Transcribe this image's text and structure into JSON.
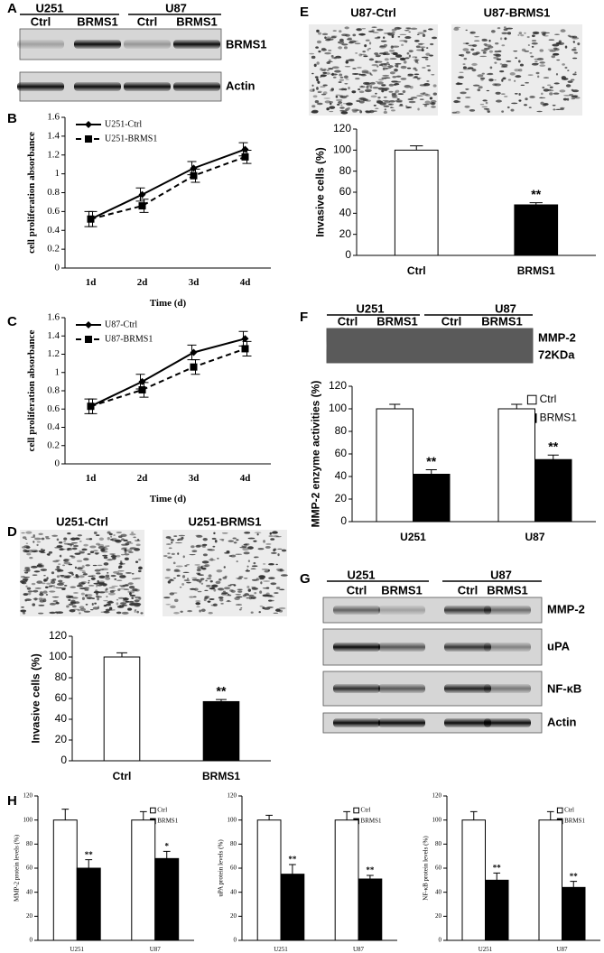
{
  "figure": {
    "panel_labels": [
      "A",
      "B",
      "C",
      "D",
      "E",
      "F",
      "G",
      "H"
    ],
    "blot_A": {
      "groups": [
        "U251",
        "U87"
      ],
      "lanes": [
        "Ctrl",
        "BRMS1",
        "Ctrl",
        "BRMS1"
      ],
      "rows": [
        "BRMS1",
        "Actin"
      ]
    },
    "micrograph_D": [
      "U251-Ctrl",
      "U251-BRMS1"
    ],
    "micrograph_E": [
      "U87-Ctrl",
      "U87-BRMS1"
    ],
    "zymogram_F": {
      "groups": [
        "U251",
        "U87"
      ],
      "lanes": [
        "Ctrl",
        "BRMS1",
        "Ctrl",
        "BRMS1"
      ],
      "rows": [
        "MMP-2",
        "72KDa"
      ]
    },
    "blot_G": {
      "groups": [
        "U251",
        "U87"
      ],
      "lanes": [
        "Ctrl",
        "BRMS1",
        "Ctrl",
        "BRMS1"
      ],
      "rows": [
        "MMP-2",
        "uPA",
        "NF-κB",
        "Actin"
      ]
    }
  },
  "chart_data": [
    {
      "type": "line",
      "x_label": "Time (d)",
      "y_label": "cell proliferation absorbance",
      "categories": [
        "1d",
        "2d",
        "3d",
        "4d"
      ],
      "ylim": [
        0,
        1.6
      ],
      "yticks": [
        0,
        0.2,
        0.4,
        0.6,
        0.8,
        1,
        1.2,
        1.4,
        1.6
      ],
      "legend": "upper left",
      "series": [
        {
          "name": "U251-Ctrl",
          "color": "#000000",
          "line_style": "solid",
          "marker": "diamond",
          "values": [
            0.52,
            0.78,
            1.06,
            1.26
          ],
          "errors": [
            0.08,
            0.07,
            0.07,
            0.07
          ]
        },
        {
          "name": "U251-BRMS1",
          "color": "#000000",
          "line_style": "dashed",
          "marker": "square",
          "values": [
            0.52,
            0.66,
            0.98,
            1.18
          ],
          "errors": [
            0.08,
            0.07,
            0.07,
            0.07
          ]
        }
      ]
    },
    {
      "type": "line",
      "x_label": "Time (d)",
      "y_label": "cell proliferation absorbance",
      "categories": [
        "1d",
        "2d",
        "3d",
        "4d"
      ],
      "ylim": [
        0,
        1.6
      ],
      "yticks": [
        0,
        0.2,
        0.4,
        0.6,
        0.8,
        1,
        1.2,
        1.4,
        1.6
      ],
      "legend": "upper left",
      "series": [
        {
          "name": "U87-Ctrl",
          "color": "#000000",
          "line_style": "solid",
          "marker": "diamond",
          "values": [
            0.63,
            0.9,
            1.22,
            1.37
          ],
          "errors": [
            0.08,
            0.08,
            0.08,
            0.08
          ]
        },
        {
          "name": "U87-BRMS1",
          "color": "#000000",
          "line_style": "dashed",
          "marker": "square",
          "values": [
            0.63,
            0.81,
            1.06,
            1.26
          ],
          "errors": [
            0.08,
            0.08,
            0.08,
            0.08
          ]
        }
      ]
    },
    {
      "type": "bar",
      "y_label": "Invasive cells (%)",
      "categories": [
        "Ctrl",
        "BRMS1"
      ],
      "values": [
        100,
        57
      ],
      "errors": [
        4,
        2
      ],
      "colors": [
        "#ffffff",
        "#000000"
      ],
      "ylim": [
        0,
        120
      ],
      "yticks": [
        0,
        20,
        40,
        60,
        80,
        100,
        120
      ],
      "annotations": [
        {
          "category": "BRMS1",
          "text": "**"
        }
      ]
    },
    {
      "type": "bar",
      "y_label": "Invasive cells (%)",
      "categories": [
        "Ctrl",
        "BRMS1"
      ],
      "values": [
        100,
        48
      ],
      "errors": [
        4,
        2
      ],
      "colors": [
        "#ffffff",
        "#000000"
      ],
      "ylim": [
        0,
        120
      ],
      "yticks": [
        0,
        20,
        40,
        60,
        80,
        100,
        120
      ],
      "annotations": [
        {
          "category": "BRMS1",
          "text": "**"
        }
      ]
    },
    {
      "type": "bar",
      "y_label": "MMP-2 enzyme activities (%)",
      "categories": [
        "U251",
        "U87"
      ],
      "ylim": [
        0,
        120
      ],
      "yticks": [
        0,
        20,
        40,
        60,
        80,
        100,
        120
      ],
      "legend": "upper right",
      "series": [
        {
          "name": "Ctrl",
          "color": "#ffffff",
          "values": [
            100,
            100
          ],
          "errors": [
            4,
            4
          ]
        },
        {
          "name": "BRMS1",
          "color": "#000000",
          "values": [
            42,
            55
          ],
          "errors": [
            4,
            4
          ]
        }
      ],
      "annotations": [
        {
          "series": "BRMS1",
          "category": "U251",
          "text": "**"
        },
        {
          "series": "BRMS1",
          "category": "U87",
          "text": "**"
        }
      ]
    },
    {
      "type": "bar",
      "y_label": "MMP-2 protein levels (%)",
      "categories": [
        "U251",
        "U87"
      ],
      "ylim": [
        0,
        120
      ],
      "yticks": [
        0,
        20,
        40,
        60,
        80,
        100,
        120
      ],
      "legend": "upper right",
      "series": [
        {
          "name": "Ctrl",
          "color": "#ffffff",
          "values": [
            100,
            100
          ],
          "errors": [
            9,
            7
          ]
        },
        {
          "name": "BRMS1",
          "color": "#000000",
          "values": [
            60,
            68
          ],
          "errors": [
            7,
            6
          ]
        }
      ],
      "annotations": [
        {
          "series": "BRMS1",
          "category": "U251",
          "text": "**"
        },
        {
          "series": "BRMS1",
          "category": "U87",
          "text": "*"
        }
      ]
    },
    {
      "type": "bar",
      "y_label": "uPA protein levels (%)",
      "categories": [
        "U251",
        "U87"
      ],
      "ylim": [
        0,
        120
      ],
      "yticks": [
        0,
        20,
        40,
        60,
        80,
        100,
        120
      ],
      "legend": "upper right",
      "series": [
        {
          "name": "Ctrl",
          "color": "#ffffff",
          "values": [
            100,
            100
          ],
          "errors": [
            4,
            7
          ]
        },
        {
          "name": "BRMS1",
          "color": "#000000",
          "values": [
            55,
            51
          ],
          "errors": [
            8,
            3
          ]
        }
      ],
      "annotations": [
        {
          "series": "BRMS1",
          "category": "U251",
          "text": "**"
        },
        {
          "series": "BRMS1",
          "category": "U87",
          "text": "**"
        }
      ]
    },
    {
      "type": "bar",
      "y_label": "NF-κB protein levels (%)",
      "categories": [
        "U251",
        "U87"
      ],
      "ylim": [
        0,
        120
      ],
      "yticks": [
        0,
        20,
        40,
        60,
        80,
        100,
        120
      ],
      "legend": "upper right",
      "series": [
        {
          "name": "Ctrl",
          "color": "#ffffff",
          "values": [
            100,
            100
          ],
          "errors": [
            7,
            7
          ]
        },
        {
          "name": "BRMS1",
          "color": "#000000",
          "values": [
            50,
            44
          ],
          "errors": [
            6,
            5
          ]
        }
      ],
      "annotations": [
        {
          "series": "BRMS1",
          "category": "U251",
          "text": "**"
        },
        {
          "series": "BRMS1",
          "category": "U87",
          "text": "**"
        }
      ]
    }
  ]
}
